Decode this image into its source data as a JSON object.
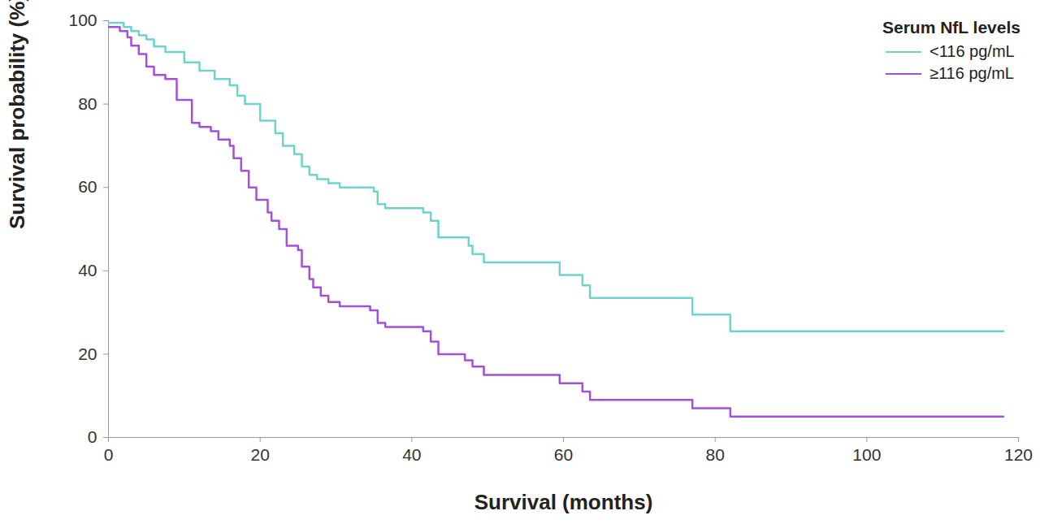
{
  "chart_data": {
    "type": "line",
    "x_label": "Survival (months)",
    "y_label": "Survival probability (%)",
    "legend_title": "Serum NfL levels",
    "legend": "top-right",
    "line_style": "step",
    "xlim": [
      0,
      120
    ],
    "xticks": [
      0,
      20,
      40,
      60,
      80,
      100,
      120
    ],
    "ylim": [
      0,
      100
    ],
    "yticks": [
      0,
      20,
      40,
      60,
      80,
      100
    ],
    "grid": false,
    "series": [
      {
        "name": "<116 pg/mL",
        "color": "#6dd3cd",
        "x": [
          0,
          2,
          3,
          4,
          5,
          6,
          7.5,
          10,
          12,
          14,
          16,
          17,
          18,
          20,
          22,
          23,
          24.5,
          25.5,
          26.5,
          27.5,
          29,
          30.5,
          35,
          35.5,
          36.5,
          41.5,
          42.5,
          43.5,
          47.5,
          48,
          49.5,
          59.5,
          62.5,
          63.5,
          77,
          82,
          118
        ],
        "values": [
          99.5,
          98.5,
          97.5,
          96.5,
          95.5,
          93.8,
          92.5,
          90,
          88,
          86,
          84.5,
          82,
          80,
          76,
          73,
          70,
          68,
          65,
          63,
          62,
          61,
          60,
          59,
          56,
          55,
          54,
          52,
          48,
          46,
          44,
          42,
          39,
          36.5,
          33.5,
          29.5,
          25.5,
          25.5
        ]
      },
      {
        "name": "≥116 pg/mL",
        "color": "#a24fdc",
        "x": [
          0,
          1.5,
          2.5,
          3,
          4,
          5,
          6,
          7.5,
          9,
          11,
          12,
          13.5,
          14.5,
          16,
          16.5,
          17.5,
          18.5,
          19.5,
          21,
          21.5,
          22.5,
          23.5,
          25,
          25.5,
          26.5,
          27,
          28,
          29,
          30.5,
          34.5,
          35.5,
          36.5,
          41.5,
          42.5,
          43.5,
          47,
          48,
          49.5,
          59.5,
          62.5,
          63.5,
          77,
          82,
          118
        ],
        "values": [
          98.5,
          97.5,
          96,
          94,
          92,
          89,
          87,
          86,
          81,
          75.5,
          74.5,
          73.5,
          71.5,
          70,
          67,
          64,
          60,
          57,
          54,
          52,
          50,
          46,
          45,
          41,
          38,
          36,
          34,
          32.5,
          31.5,
          30.5,
          27.5,
          26.5,
          25.5,
          23,
          20,
          18.5,
          17,
          15,
          13,
          11,
          9,
          7,
          5,
          5
        ]
      }
    ]
  }
}
